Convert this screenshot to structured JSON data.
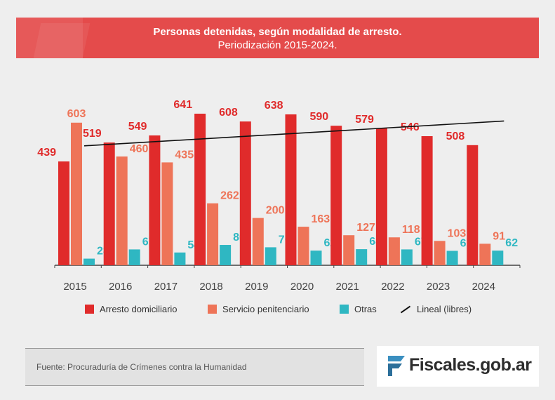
{
  "header": {
    "title": "Personas detenidas, según modalidad de arresto.",
    "subtitle": "Periodización 2015-2024."
  },
  "colors": {
    "banner": "#e44b4b",
    "arresto": "#e02b2b",
    "servicio": "#ee7458",
    "otras": "#2fb7c2",
    "trend": "#111111"
  },
  "chart_data": {
    "type": "bar",
    "categories": [
      "2015",
      "2016",
      "2017",
      "2018",
      "2019",
      "2020",
      "2021",
      "2022",
      "2023",
      "2024"
    ],
    "series": [
      {
        "name": "Arresto domiciliario",
        "values": [
          439,
          519,
          549,
          641,
          608,
          638,
          590,
          579,
          546,
          508
        ]
      },
      {
        "name": "Servicio penitenciario",
        "values": [
          603,
          460,
          435,
          262,
          200,
          163,
          127,
          118,
          103,
          91
        ]
      },
      {
        "name": "Otras",
        "values": [
          28,
          67,
          54,
          86,
          76,
          62,
          68,
          67,
          61,
          62
        ]
      }
    ],
    "trendline": {
      "name": "Lineal (libres)",
      "start": 505,
      "end": 610
    },
    "ylim": [
      0,
      650
    ],
    "legend_position": "bottom",
    "grid": false
  },
  "legend": {
    "items": [
      {
        "label": "Arresto domiciliario",
        "icon": "square"
      },
      {
        "label": "Servicio penitenciario",
        "icon": "square"
      },
      {
        "label": "Otras",
        "icon": "square"
      },
      {
        "label": "Lineal (libres)",
        "icon": "line"
      }
    ]
  },
  "footer": {
    "source": "Fuente: Procuraduría de Crímenes contra la Humanidad",
    "logo_text": "Fiscales.gob.ar"
  }
}
